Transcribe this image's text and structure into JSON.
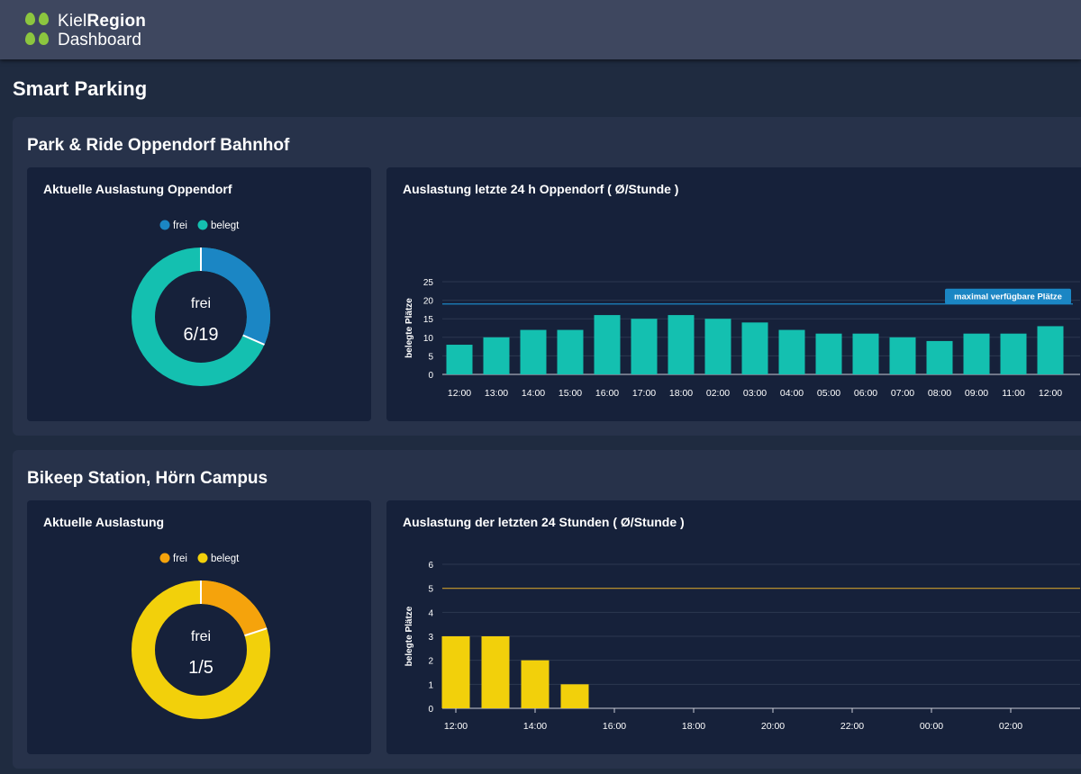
{
  "header": {
    "logo_kiel": "Kiel",
    "logo_region": "Region",
    "logo_dashboard": "Dashboard"
  },
  "page_title": "Smart Parking",
  "sections": [
    {
      "title": "Park & Ride Oppendorf Bahnhof",
      "donut": {
        "title": "Aktuelle Auslastung Oppendorf",
        "legend": [
          "frei",
          "belegt"
        ],
        "center_label": "frei",
        "center_value": "6/19",
        "free": 6,
        "total": 19,
        "colors": {
          "frei": "#1b86c4",
          "belegt": "#14c0b0"
        }
      },
      "bar": {
        "title": "Auslastung letzte 24 h Oppendorf ( Ø/Stunde )",
        "ylabel": "belegte Plätze",
        "yticks": [
          "25",
          "20",
          "15",
          "10",
          "5",
          "0"
        ],
        "limit_label": "maximal verfügbare Plätze"
      }
    },
    {
      "title": "Bikeep Station, Hörn Campus",
      "donut": {
        "title": "Aktuelle Auslastung",
        "legend": [
          "frei",
          "belegt"
        ],
        "center_label": "frei",
        "center_value": "1/5",
        "free": 1,
        "total": 5,
        "colors": {
          "frei": "#f5a30c",
          "belegt": "#f2d00b"
        }
      },
      "bar": {
        "title": "Auslastung der letzten 24 Stunden ( Ø/Stunde )",
        "ylabel": "belegte Plätze",
        "yticks": [
          "6",
          "5",
          "4",
          "3",
          "2",
          "1",
          "0"
        ]
      }
    }
  ],
  "chart_data": [
    {
      "type": "bar",
      "categories": [
        "12:00",
        "13:00",
        "14:00",
        "15:00",
        "16:00",
        "17:00",
        "18:00",
        "02:00",
        "03:00",
        "04:00",
        "05:00",
        "06:00",
        "07:00",
        "08:00",
        "09:00",
        "11:00",
        "12:00"
      ],
      "values": [
        8,
        10,
        12,
        12,
        16,
        15,
        16,
        15,
        14,
        12,
        11,
        11,
        10,
        9,
        11,
        11,
        13
      ],
      "title": "Auslastung letzte 24 h Oppendorf ( Ø/Stunde )",
      "ylabel": "belegte Plätze",
      "ylim": [
        0,
        25
      ],
      "reference_line": {
        "value": 19,
        "label": "maximal verfügbare Plätze"
      },
      "bar_color": "#14c0b0",
      "grid": true
    },
    {
      "type": "bar",
      "categories": [
        "12:00",
        "13:00",
        "14:00",
        "15:00"
      ],
      "values": [
        3,
        3,
        2,
        1
      ],
      "xticks": [
        "12:00",
        "14:00",
        "16:00",
        "18:00",
        "20:00",
        "22:00",
        "00:00",
        "02:00"
      ],
      "title": "Auslastung der letzten 24 Stunden ( Ø/Stunde )",
      "ylabel": "belegte Plätze",
      "ylim": [
        0,
        6
      ],
      "reference_line": {
        "value": 5
      },
      "bar_color": "#f2d00b",
      "grid": true
    }
  ]
}
